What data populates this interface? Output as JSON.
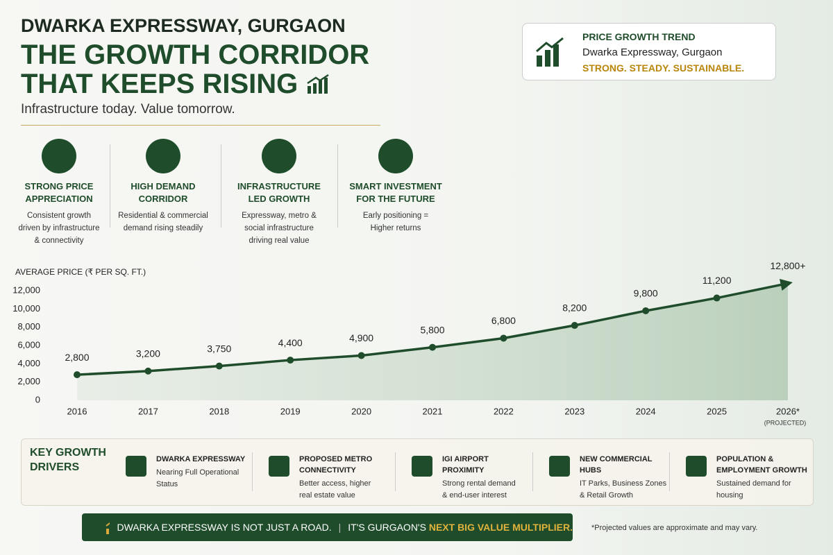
{
  "header": {
    "kicker": "DWARKA EXPRESSWAY, GURGAON",
    "title_lines": [
      "THE GROWTH CORRIDOR",
      "THAT KEEPS RISING"
    ],
    "tagline": "Infrastructure today. Value tomorrow."
  },
  "trend_card": {
    "title": "PRICE GROWTH TREND",
    "location": "Dwarka Expressway, Gurgaon",
    "slogan": "STRONG. STEADY. SUSTAINABLE."
  },
  "features": [
    {
      "title_lines": [
        "STRONG PRICE",
        "APPRECIATION"
      ],
      "description_lines": [
        "Consistent growth",
        "driven by infrastructure",
        "& connectivity"
      ]
    },
    {
      "title_lines": [
        "HIGH DEMAND",
        "CORRIDOR"
      ],
      "description_lines": [
        "Residential & commercial",
        "demand rising steadily"
      ]
    },
    {
      "title_lines": [
        "INFRASTRUCTURE",
        "LED GROWTH"
      ],
      "description_lines": [
        "Expressway, metro &",
        "social infrastructure",
        "driving real value"
      ]
    },
    {
      "title_lines": [
        "SMART INVESTMENT",
        "FOR THE FUTURE"
      ],
      "description_lines": [
        "Early positioning =",
        "Higher returns"
      ]
    }
  ],
  "chart_data": {
    "type": "line",
    "y_axis_label": "AVERAGE PRICE (₹ PER SQ. FT.)",
    "categories": [
      "2016",
      "2017",
      "2018",
      "2019",
      "2020",
      "2021",
      "2022",
      "2023",
      "2024",
      "2025",
      "2026*"
    ],
    "annotation": "(PROJECTED)",
    "series": [
      {
        "name": "Average price",
        "color": "#1f4d2b",
        "values": [
          2800,
          3200,
          3750,
          4400,
          4900,
          5800,
          6800,
          8200,
          9800,
          11200,
          12800
        ],
        "value_labels": [
          "2,800",
          "3,200",
          "3,750",
          "4,400",
          "4,900",
          "5,800",
          "6,800",
          "8,200",
          "9,800",
          "11,200",
          "12,800+"
        ]
      }
    ],
    "ylim": [
      0,
      12000
    ],
    "yticks": [
      0,
      {
        "value": 2000,
        "label": "2,000"
      },
      {
        "value": 4000,
        "label": "4,000"
      },
      {
        "value": 6000,
        "label": "6,000"
      },
      {
        "value": 8000,
        "label": "8,000"
      },
      {
        "value": 10000,
        "label": "10,000"
      },
      {
        "value": 12000,
        "label": "12,000"
      }
    ],
    "grid": false
  },
  "drivers": {
    "heading_lines": [
      "KEY GROWTH",
      "DRIVERS"
    ],
    "items": [
      {
        "title_lines": [
          "DWARKA EXPRESSWAY"
        ],
        "description_lines": [
          "Nearing Full Operational",
          "Status"
        ]
      },
      {
        "title_lines": [
          "PROPOSED METRO",
          "CONNECTIVITY"
        ],
        "description_lines": [
          "Better access, higher",
          "real estate value"
        ]
      },
      {
        "title_lines": [
          "IGI AIRPORT",
          "PROXIMITY"
        ],
        "description_lines": [
          "Strong rental demand",
          "& end-user interest"
        ]
      },
      {
        "title_lines": [
          "NEW COMMERCIAL",
          "HUBS"
        ],
        "description_lines": [
          "IT Parks, Business Zones",
          "& Retail Growth"
        ]
      },
      {
        "title_lines": [
          "POPULATION &",
          "EMPLOYMENT GROWTH"
        ],
        "description_lines": [
          "Sustained demand for",
          "housing"
        ]
      }
    ]
  },
  "banner": {
    "part1": "DWARKA EXPRESSWAY IS NOT JUST A ROAD.",
    "part2": "IT'S GURGAON'S",
    "highlight": "NEXT BIG VALUE MULTIPLIER."
  },
  "footnote": "*Projected values are approximate and may vary."
}
